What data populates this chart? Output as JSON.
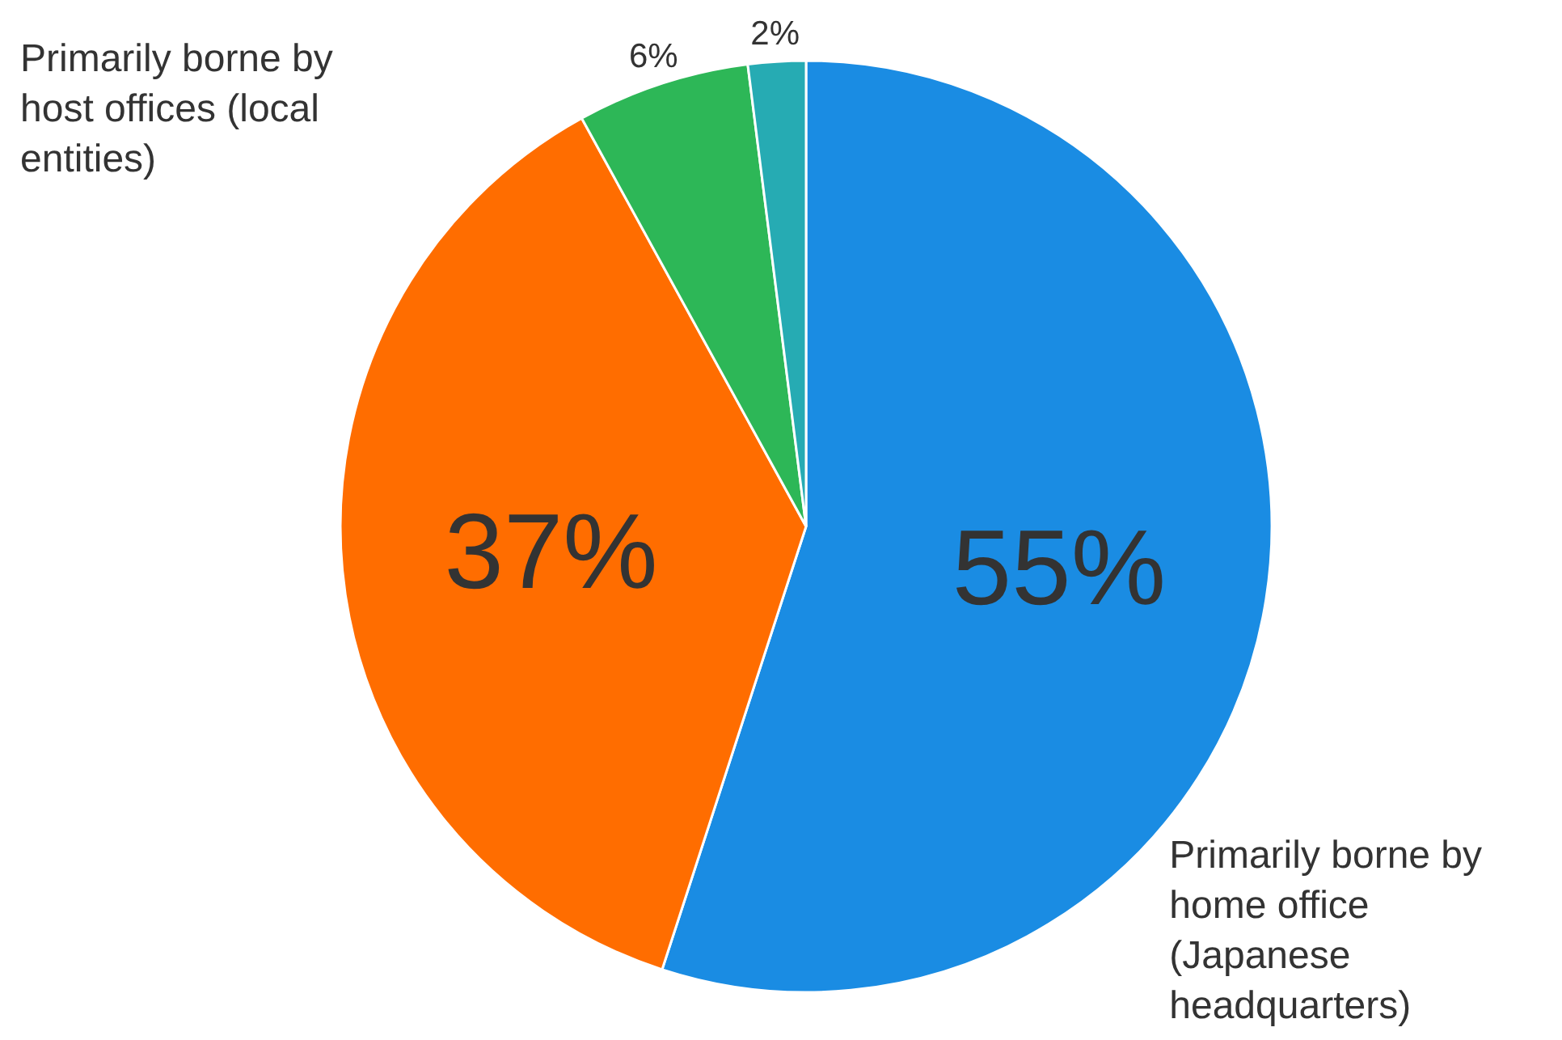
{
  "chart_data": {
    "type": "pie",
    "categories": [
      "Primarily borne by home office (Japanese headquarters)",
      "Primarily borne by host offices (local entities)",
      null,
      null
    ],
    "values": [
      55,
      37,
      6,
      2
    ],
    "colors": [
      "#1a8ce3",
      "#ff6d00",
      "#2db757",
      "#26abb3"
    ],
    "value_labels": [
      "55%",
      "37%",
      "6%",
      "2%"
    ]
  }
}
